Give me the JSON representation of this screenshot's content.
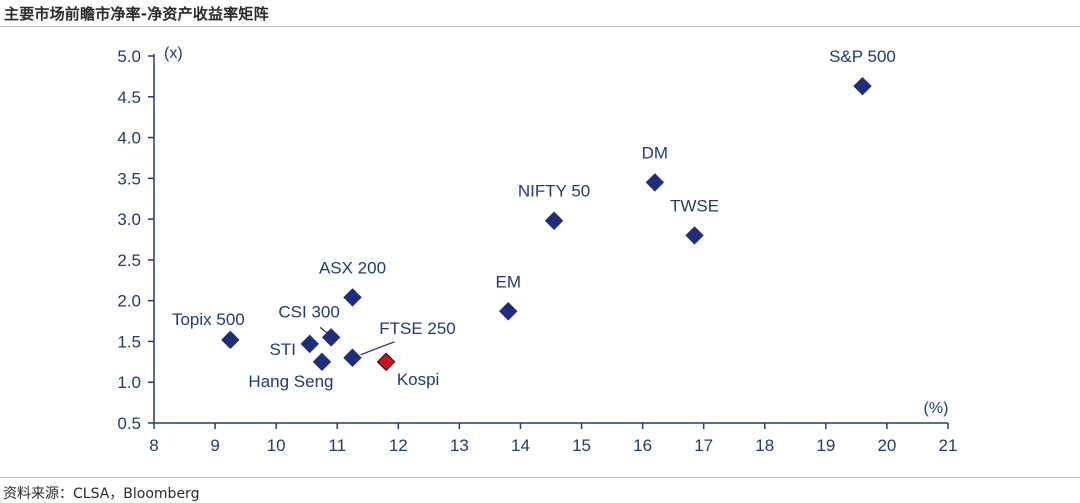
{
  "header": {
    "title": "主要市场前瞻市净率-净资产收益率矩阵"
  },
  "footer": {
    "source": "资料来源：CLSA，Bloomberg"
  },
  "colors": {
    "marker": "#1f2d7a",
    "highlight": "#c8141e",
    "text": "#1f3b73",
    "axis": "#1f3b73"
  },
  "chart_data": {
    "type": "scatter",
    "title": "主要市场前瞻市净率-净资产收益率矩阵",
    "xlabel": "(%)",
    "ylabel": "(x)",
    "xlim": [
      8,
      21
    ],
    "ylim": [
      0.5,
      5.0
    ],
    "x_ticks": [
      "8",
      "9",
      "10",
      "11",
      "12",
      "13",
      "14",
      "15",
      "16",
      "17",
      "18",
      "19",
      "20",
      "21"
    ],
    "y_ticks": [
      "0.5",
      "1.0",
      "1.5",
      "2.0",
      "2.5",
      "3.0",
      "3.5",
      "4.0",
      "4.5",
      "5.0"
    ],
    "grid": false,
    "points": [
      {
        "name": "S&P 500",
        "x": 19.6,
        "y": 4.63,
        "highlight": false
      },
      {
        "name": "DM",
        "x": 16.2,
        "y": 3.45,
        "highlight": false
      },
      {
        "name": "TWSE",
        "x": 16.85,
        "y": 2.8,
        "highlight": false
      },
      {
        "name": "NIFTY 50",
        "x": 14.55,
        "y": 2.98,
        "highlight": false
      },
      {
        "name": "EM",
        "x": 13.8,
        "y": 1.87,
        "highlight": false
      },
      {
        "name": "ASX 200",
        "x": 11.25,
        "y": 2.04,
        "highlight": false
      },
      {
        "name": "Topix 500",
        "x": 9.25,
        "y": 1.52,
        "highlight": false
      },
      {
        "name": "CSI 300",
        "x": 10.9,
        "y": 1.55,
        "highlight": false
      },
      {
        "name": "STI",
        "x": 10.55,
        "y": 1.47,
        "highlight": false
      },
      {
        "name": "FTSE 250",
        "x": 11.25,
        "y": 1.3,
        "highlight": false
      },
      {
        "name": "Hang Seng",
        "x": 10.75,
        "y": 1.25,
        "highlight": false
      },
      {
        "name": "Kospi",
        "x": 11.8,
        "y": 1.25,
        "highlight": true
      }
    ]
  }
}
